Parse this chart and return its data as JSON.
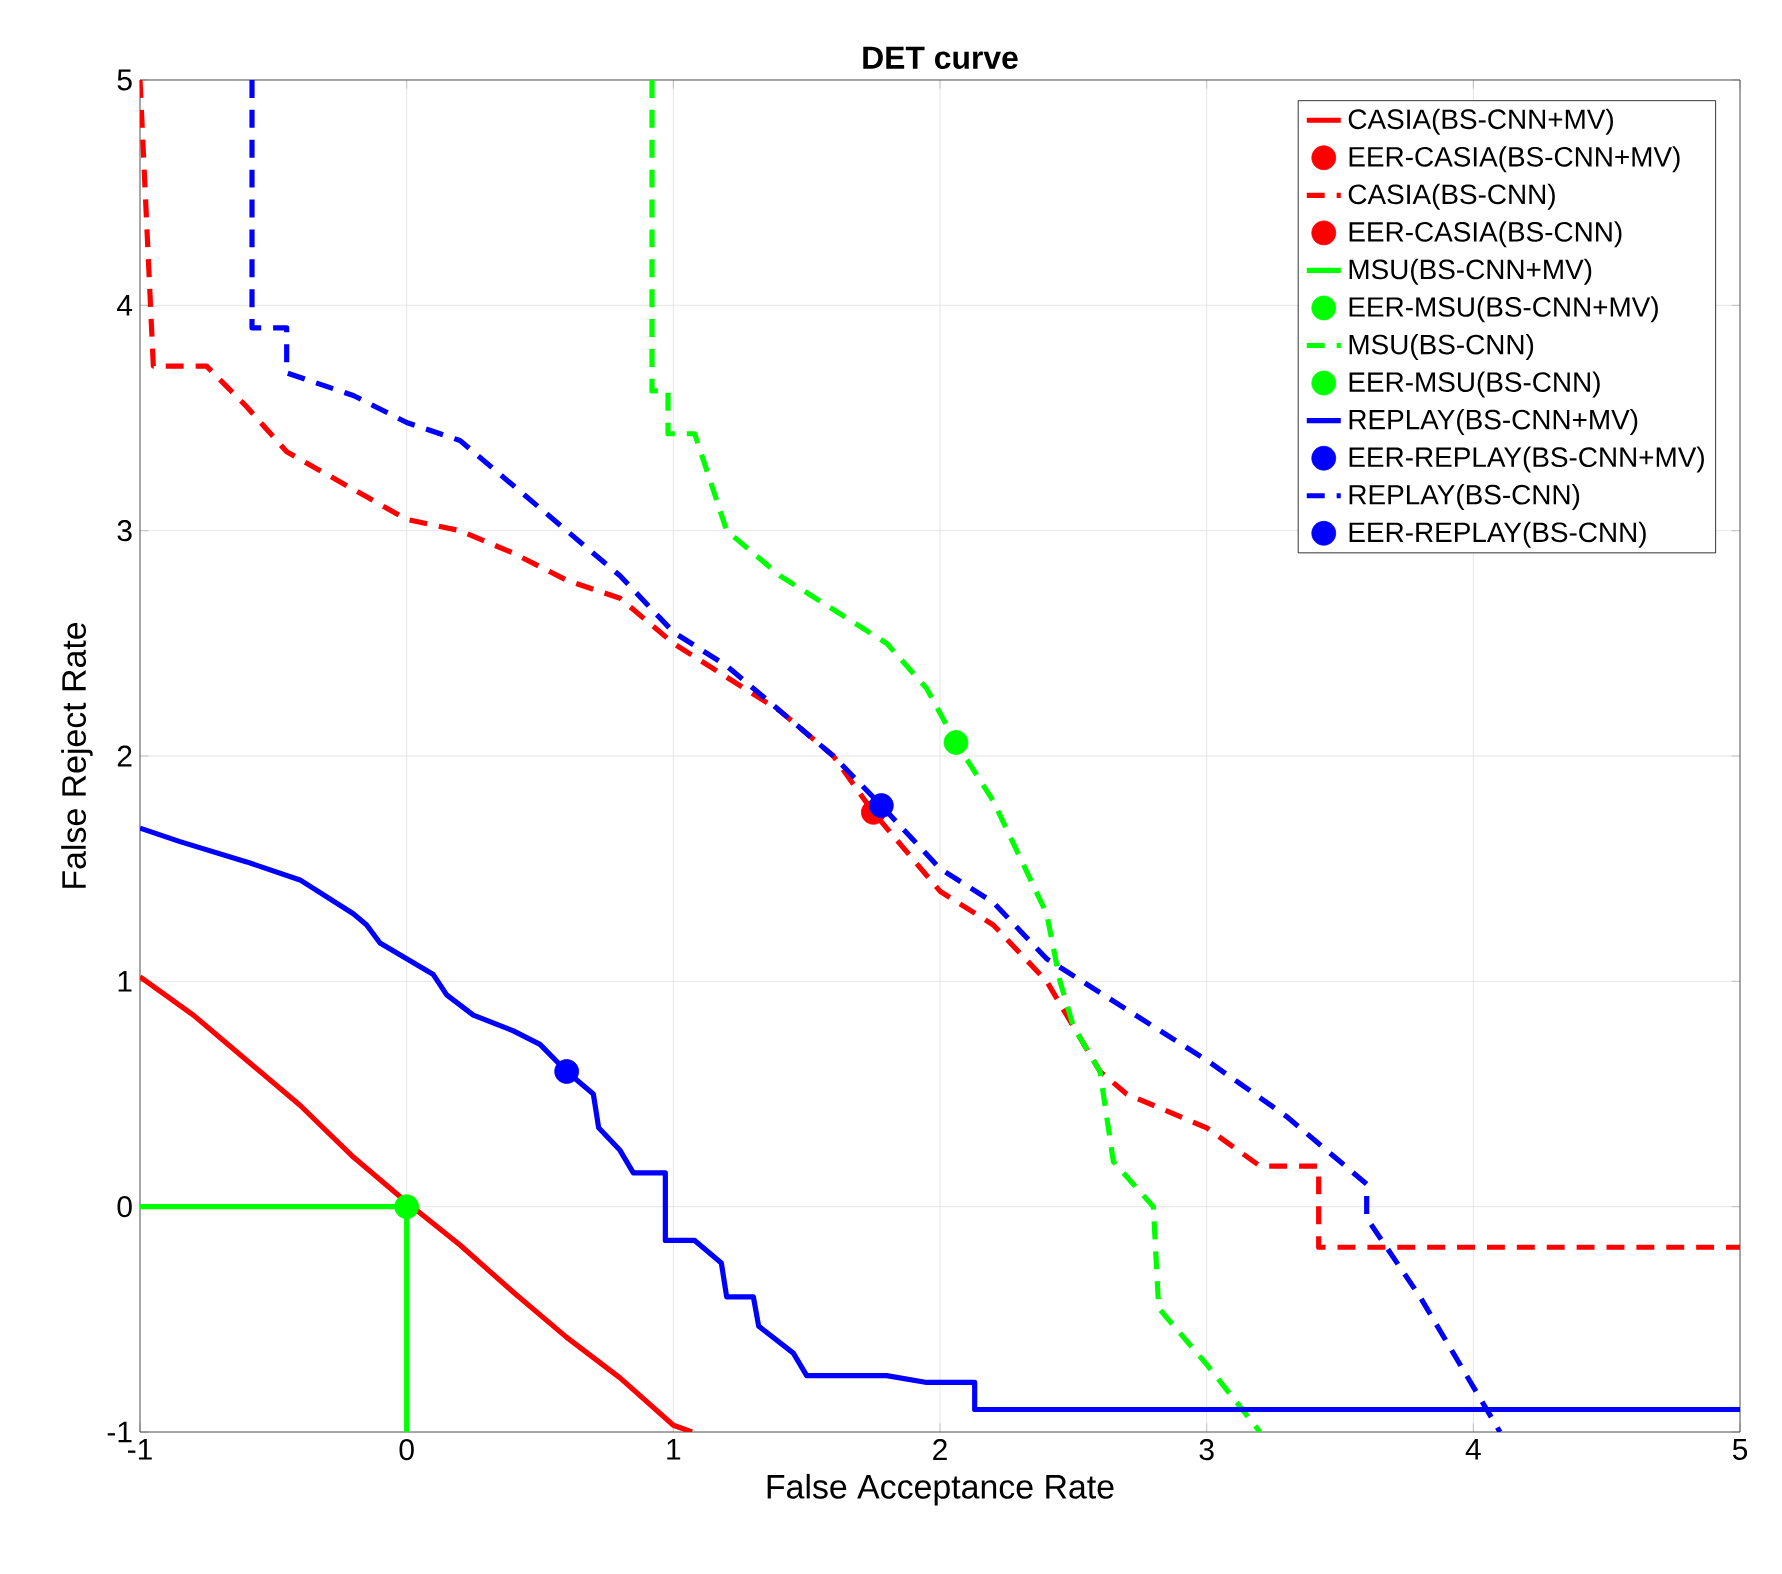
{
  "chart_data": {
    "type": "line",
    "title": "DET curve",
    "xlabel": "False Acceptance Rate",
    "ylabel": "False Reject Rate",
    "xlim": [
      -1,
      5
    ],
    "ylim": [
      -1,
      5
    ],
    "xticks": [
      -1,
      0,
      1,
      2,
      3,
      4,
      5
    ],
    "yticks": [
      -1,
      0,
      1,
      2,
      3,
      4,
      5
    ],
    "grid": true,
    "legend": "top right",
    "series": [
      {
        "name": "CASIA(BS-CNN+MV)",
        "color": "#ff0000",
        "line_style": "solid",
        "marker": "none",
        "x": [
          -1,
          -0.8,
          -0.6,
          -0.4,
          -0.2,
          0,
          0.2,
          0.4,
          0.6,
          0.8,
          1.0,
          1.07
        ],
        "values": [
          1.02,
          0.85,
          0.65,
          0.45,
          0.22,
          0.02,
          -0.17,
          -0.38,
          -0.58,
          -0.76,
          -0.97,
          -1
        ]
      },
      {
        "name": "EER-CASIA(BS-CNN+MV)",
        "type": "scatter",
        "color": "#ff0000",
        "marker": "circle"
      },
      {
        "name": "CASIA(BS-CNN)",
        "color": "#ff0000",
        "line_style": "dashed",
        "marker": "none",
        "x": [
          -1,
          -0.95,
          -0.75,
          -0.6,
          -0.45,
          -0.3,
          -0.15,
          0,
          0.2,
          0.4,
          0.6,
          0.8,
          1.0,
          1.2,
          1.4,
          1.6,
          1.75,
          2.0,
          2.2,
          2.4,
          2.5,
          2.6,
          2.7,
          3.0,
          3.2,
          3.42,
          3.42,
          5
        ],
        "values": [
          5,
          3.73,
          3.73,
          3.55,
          3.35,
          3.25,
          3.15,
          3.05,
          3.0,
          2.9,
          2.78,
          2.7,
          2.5,
          2.35,
          2.2,
          2.0,
          1.75,
          1.4,
          1.25,
          1.0,
          0.8,
          0.6,
          0.5,
          0.35,
          0.18,
          0.18,
          -0.18,
          -0.18
        ]
      },
      {
        "name": "EER-CASIA(BS-CNN)",
        "type": "scatter",
        "color": "#ff0000",
        "marker": "circle",
        "x": [
          1.75
        ],
        "values": [
          1.75
        ]
      },
      {
        "name": "MSU(BS-CNN+MV)",
        "color": "#00ff00",
        "line_style": "solid",
        "marker": "none",
        "x": [
          -1,
          0,
          0
        ],
        "values": [
          0,
          0,
          -1
        ]
      },
      {
        "name": "EER-MSU(BS-CNN+MV)",
        "type": "scatter",
        "color": "#00ff00",
        "marker": "circle",
        "x": [
          0
        ],
        "values": [
          0
        ]
      },
      {
        "name": "MSU(BS-CNN)",
        "color": "#00ff00",
        "line_style": "dashed",
        "marker": "none",
        "x": [
          0.92,
          0.92,
          0.98,
          0.98,
          1.08,
          1.2,
          1.4,
          1.6,
          1.8,
          1.95,
          2.06,
          2.2,
          2.3,
          2.4,
          2.45,
          2.5,
          2.6,
          2.65,
          2.8,
          2.82,
          3.0,
          3.2
        ],
        "values": [
          5,
          3.62,
          3.62,
          3.43,
          3.43,
          3.0,
          2.8,
          2.65,
          2.5,
          2.3,
          2.06,
          1.8,
          1.55,
          1.3,
          1.0,
          0.8,
          0.6,
          0.2,
          0.0,
          -0.45,
          -0.7,
          -1
        ]
      },
      {
        "name": "EER-MSU(BS-CNN)",
        "type": "scatter",
        "color": "#00ff00",
        "marker": "circle",
        "x": [
          2.06
        ],
        "values": [
          2.06
        ]
      },
      {
        "name": "REPLAY(BS-CNN+MV)",
        "color": "#0000ff",
        "line_style": "solid",
        "marker": "none",
        "x": [
          -1,
          -0.85,
          -0.6,
          -0.4,
          -0.2,
          -0.15,
          -0.1,
          0,
          0.1,
          0.15,
          0.25,
          0.4,
          0.5,
          0.6,
          0.7,
          0.72,
          0.8,
          0.85,
          0.97,
          0.97,
          1.08,
          1.18,
          1.2,
          1.3,
          1.32,
          1.45,
          1.5,
          1.8,
          1.95,
          2.13,
          2.13,
          5
        ],
        "values": [
          1.68,
          1.62,
          1.53,
          1.45,
          1.3,
          1.25,
          1.17,
          1.1,
          1.03,
          0.94,
          0.85,
          0.78,
          0.72,
          0.6,
          0.5,
          0.35,
          0.25,
          0.15,
          0.15,
          -0.15,
          -0.15,
          -0.25,
          -0.4,
          -0.4,
          -0.53,
          -0.65,
          -0.75,
          -0.75,
          -0.78,
          -0.78,
          -0.9,
          -0.9
        ]
      },
      {
        "name": "EER-REPLAY(BS-CNN+MV)",
        "type": "scatter",
        "color": "#0000ff",
        "marker": "circle",
        "x": [
          0.6
        ],
        "values": [
          0.6
        ]
      },
      {
        "name": "REPLAY(BS-CNN)",
        "color": "#0000ff",
        "line_style": "dashed",
        "marker": "none",
        "x": [
          -0.58,
          -0.58,
          -0.45,
          -0.45,
          -0.2,
          0,
          0.2,
          0.4,
          0.6,
          0.8,
          1.0,
          1.2,
          1.4,
          1.6,
          1.78,
          2.0,
          2.2,
          2.4,
          2.6,
          2.8,
          3.0,
          3.3,
          3.5,
          3.6,
          3.6,
          3.8,
          4.1
        ],
        "values": [
          5,
          3.9,
          3.9,
          3.7,
          3.6,
          3.48,
          3.4,
          3.2,
          3.0,
          2.8,
          2.55,
          2.4,
          2.2,
          2.0,
          1.78,
          1.5,
          1.35,
          1.1,
          0.95,
          0.8,
          0.65,
          0.4,
          0.2,
          0.1,
          -0.05,
          -0.4,
          -1
        ]
      },
      {
        "name": "EER-REPLAY(BS-CNN)",
        "type": "scatter",
        "color": "#0000ff",
        "marker": "circle",
        "x": [
          1.78
        ],
        "values": [
          1.78
        ]
      }
    ]
  }
}
